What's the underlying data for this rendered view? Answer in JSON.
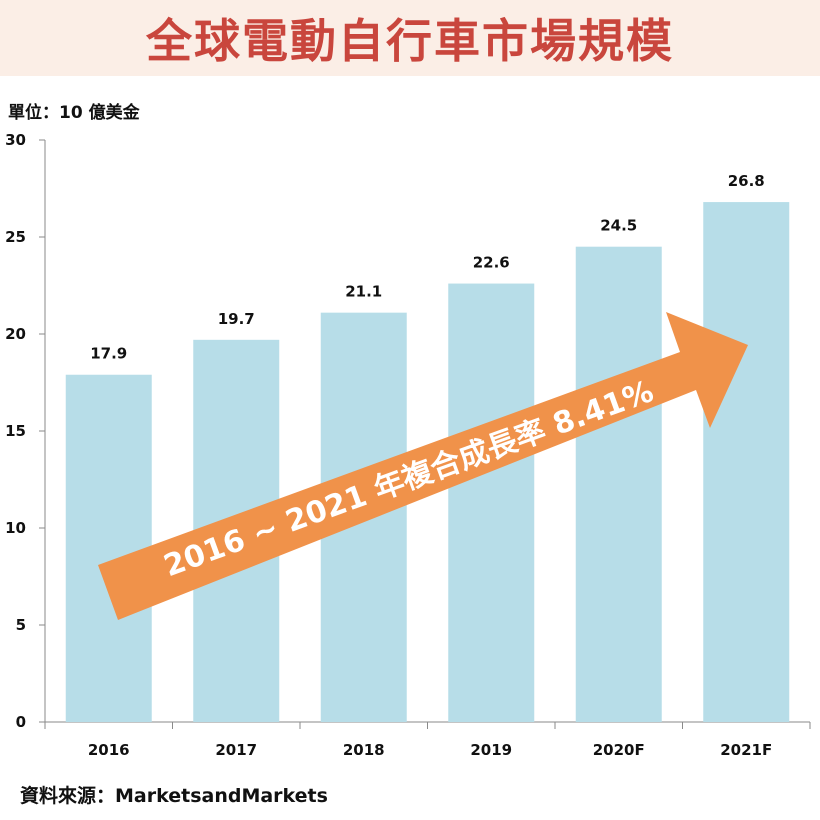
{
  "header": {
    "title": "全球電動自行車市場規模"
  },
  "unit_label": "單位：10 億美金",
  "source_label": "資料來源：MarketsandMarkets",
  "annotation": {
    "text": "2016 ~ 2021 年複合成長率 8.41%",
    "color": "#f0924a"
  },
  "colors": {
    "bar": "#b7dde8",
    "title": "#c9463d",
    "title_band": "#fbeee6"
  },
  "chart_data": {
    "type": "bar",
    "title": "全球電動自行車市場規模",
    "ylabel": "單位：10 億美金",
    "xlabel": "",
    "categories": [
      "2016",
      "2017",
      "2018",
      "2019",
      "2020F",
      "2021F"
    ],
    "values": [
      17.9,
      19.7,
      21.1,
      22.6,
      24.5,
      26.8
    ],
    "value_labels": [
      "17.9",
      "19.7",
      "21.1",
      "22.6",
      "24.5",
      "26.8"
    ],
    "ylim": [
      0,
      30
    ],
    "yticks": [
      0,
      5,
      10,
      15,
      20,
      25,
      30
    ],
    "grid": false,
    "legend": "none"
  }
}
